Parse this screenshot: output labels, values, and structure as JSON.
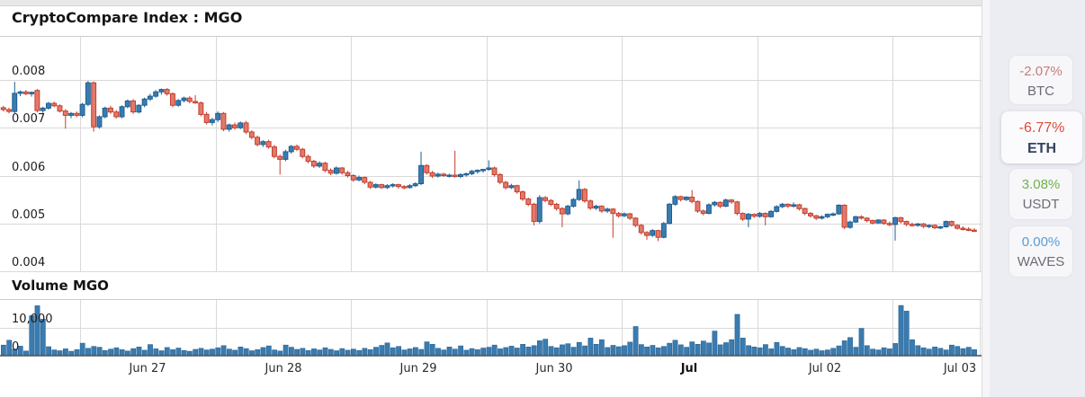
{
  "chart_data": {
    "type": "candlestick",
    "title": "CryptoCompare Index : MGO",
    "interval": "1 hour",
    "x_range_note": "Jun 26 evening through Jul 03",
    "grid": true,
    "y_ticks": [
      0.008,
      0.007,
      0.006,
      0.005,
      0.004
    ],
    "y_tick_labels": [
      "0.008",
      "0.007",
      "0.006",
      "0.005",
      "0.004"
    ],
    "ylim": [
      0.004,
      0.0089
    ],
    "x_tick_labels": [
      {
        "label": "Jun 27",
        "bold": false
      },
      {
        "label": "Jun 28",
        "bold": false
      },
      {
        "label": "Jun 29",
        "bold": false
      },
      {
        "label": "Jun 30",
        "bold": false
      },
      {
        "label": "Jul",
        "bold": true
      },
      {
        "label": "Jul 02",
        "bold": false
      },
      {
        "label": "Jul 03",
        "bold": false
      }
    ],
    "price_scale": 0.0001,
    "ohlc_note": "[open,high,low,close] multiplied by price_scale gives price",
    "ohlc": [
      [
        74.2,
        74.6,
        73.4,
        73.8
      ],
      [
        73.8,
        74.2,
        73.0,
        73.4
      ],
      [
        73.4,
        79.6,
        73.0,
        77.2
      ],
      [
        77.2,
        77.8,
        76.6,
        77.5
      ],
      [
        77.5,
        77.9,
        76.8,
        77.1
      ],
      [
        77.1,
        77.6,
        76.5,
        77.4
      ],
      [
        77.8,
        78.1,
        73.2,
        73.6
      ],
      [
        73.6,
        74.4,
        73.1,
        74.1
      ],
      [
        74.1,
        75.4,
        73.8,
        75.1
      ],
      [
        75.1,
        75.5,
        74.3,
        74.6
      ],
      [
        74.6,
        74.9,
        73.2,
        73.5
      ],
      [
        73.5,
        73.9,
        69.8,
        72.6
      ],
      [
        72.6,
        73.3,
        72.0,
        73.0
      ],
      [
        73.0,
        73.4,
        72.2,
        72.6
      ],
      [
        72.6,
        75.2,
        72.2,
        74.9
      ],
      [
        74.9,
        79.8,
        74.5,
        79.4
      ],
      [
        79.4,
        79.7,
        69.2,
        70.2
      ],
      [
        70.2,
        72.6,
        69.8,
        72.3
      ],
      [
        72.3,
        74.4,
        72.0,
        74.1
      ],
      [
        74.1,
        74.6,
        72.9,
        73.3
      ],
      [
        73.3,
        73.7,
        71.9,
        72.3
      ],
      [
        72.3,
        74.7,
        72.0,
        74.4
      ],
      [
        74.4,
        75.9,
        74.1,
        75.6
      ],
      [
        75.6,
        76.0,
        72.9,
        73.3
      ],
      [
        73.3,
        74.9,
        73.0,
        74.7
      ],
      [
        74.7,
        76.3,
        74.3,
        76.0
      ],
      [
        76.0,
        77.1,
        75.6,
        76.6
      ],
      [
        76.6,
        77.9,
        76.3,
        77.5
      ],
      [
        77.5,
        78.2,
        76.9,
        78.0
      ],
      [
        78.0,
        78.3,
        76.7,
        77.1
      ],
      [
        77.1,
        77.4,
        74.3,
        74.7
      ],
      [
        74.7,
        76.0,
        74.4,
        75.7
      ],
      [
        75.7,
        76.5,
        75.3,
        76.2
      ],
      [
        76.2,
        76.6,
        75.1,
        75.5
      ],
      [
        75.5,
        76.8,
        75.0,
        75.2
      ],
      [
        75.2,
        75.5,
        72.4,
        72.8
      ],
      [
        72.8,
        73.3,
        70.7,
        71.1
      ],
      [
        71.1,
        72.1,
        70.5,
        71.7
      ],
      [
        71.7,
        73.4,
        71.2,
        73.0
      ],
      [
        73.0,
        73.3,
        69.3,
        69.7
      ],
      [
        69.7,
        70.9,
        69.2,
        70.6
      ],
      [
        70.6,
        71.1,
        69.6,
        70.0
      ],
      [
        70.0,
        71.3,
        69.7,
        71.0
      ],
      [
        71.0,
        71.4,
        68.7,
        69.1
      ],
      [
        69.1,
        69.5,
        67.6,
        68.0
      ],
      [
        68.0,
        68.4,
        66.1,
        66.5
      ],
      [
        66.5,
        67.4,
        66.0,
        67.1
      ],
      [
        67.1,
        67.5,
        65.6,
        66.0
      ],
      [
        66.0,
        66.4,
        63.6,
        64.0
      ],
      [
        64.0,
        64.4,
        60.2,
        63.4
      ],
      [
        63.4,
        65.4,
        63.0,
        65.0
      ],
      [
        65.0,
        66.4,
        64.6,
        66.1
      ],
      [
        66.1,
        66.5,
        65.1,
        65.5
      ],
      [
        65.5,
        65.8,
        63.6,
        64.0
      ],
      [
        64.0,
        64.4,
        62.6,
        63.0
      ],
      [
        63.0,
        63.3,
        61.6,
        62.0
      ],
      [
        62.0,
        63.0,
        61.6,
        62.6
      ],
      [
        62.6,
        62.9,
        60.7,
        61.1
      ],
      [
        61.1,
        61.5,
        60.1,
        60.5
      ],
      [
        60.5,
        61.9,
        60.2,
        61.6
      ],
      [
        61.6,
        61.8,
        60.2,
        60.6
      ],
      [
        60.6,
        61.0,
        59.6,
        60.0
      ],
      [
        60.0,
        60.3,
        58.7,
        59.1
      ],
      [
        59.1,
        60.0,
        58.8,
        59.6
      ],
      [
        59.6,
        59.8,
        58.2,
        58.6
      ],
      [
        58.6,
        58.9,
        57.2,
        57.6
      ],
      [
        57.6,
        58.4,
        57.3,
        58.1
      ],
      [
        58.1,
        58.3,
        57.2,
        57.5
      ],
      [
        57.5,
        58.2,
        57.2,
        57.9
      ],
      [
        57.9,
        58.4,
        57.5,
        58.1
      ],
      [
        58.1,
        58.3,
        57.3,
        57.7
      ],
      [
        57.7,
        58.0,
        57.1,
        57.5
      ],
      [
        57.5,
        58.2,
        57.3,
        57.9
      ],
      [
        57.9,
        58.6,
        57.6,
        58.3
      ],
      [
        58.3,
        65.0,
        58.0,
        62.1
      ],
      [
        62.1,
        62.4,
        60.2,
        60.6
      ],
      [
        60.6,
        61.0,
        59.5,
        59.9
      ],
      [
        59.9,
        60.6,
        59.6,
        60.3
      ],
      [
        60.3,
        60.6,
        59.7,
        60.0
      ],
      [
        60.0,
        60.4,
        59.6,
        60.1
      ],
      [
        60.1,
        65.2,
        59.6,
        59.8
      ],
      [
        59.8,
        60.5,
        59.5,
        60.2
      ],
      [
        60.2,
        60.6,
        59.8,
        60.4
      ],
      [
        60.4,
        61.2,
        60.1,
        60.9
      ],
      [
        60.9,
        61.3,
        60.4,
        61.1
      ],
      [
        61.1,
        61.4,
        60.6,
        61.3
      ],
      [
        61.3,
        63.2,
        61.0,
        61.6
      ],
      [
        61.6,
        61.9,
        59.8,
        60.2
      ],
      [
        60.2,
        60.5,
        58.2,
        58.6
      ],
      [
        58.6,
        58.9,
        57.1,
        57.5
      ],
      [
        57.5,
        58.3,
        57.2,
        57.9
      ],
      [
        57.9,
        58.1,
        56.2,
        56.6
      ],
      [
        56.6,
        56.9,
        54.7,
        55.1
      ],
      [
        55.1,
        55.4,
        53.6,
        54.0
      ],
      [
        54.0,
        54.3,
        49.6,
        50.4
      ],
      [
        50.4,
        55.9,
        50.0,
        55.4
      ],
      [
        55.4,
        55.7,
        54.4,
        54.8
      ],
      [
        54.8,
        55.1,
        53.6,
        54.0
      ],
      [
        54.0,
        54.3,
        52.7,
        53.1
      ],
      [
        53.1,
        53.4,
        49.2,
        52.0
      ],
      [
        52.0,
        53.9,
        51.7,
        53.6
      ],
      [
        53.6,
        55.3,
        53.3,
        55.0
      ],
      [
        55.0,
        59.0,
        54.7,
        57.1
      ],
      [
        57.1,
        57.4,
        54.3,
        54.7
      ],
      [
        54.7,
        55.0,
        52.8,
        53.2
      ],
      [
        53.2,
        53.9,
        52.8,
        53.6
      ],
      [
        53.6,
        53.8,
        52.2,
        52.6
      ],
      [
        52.6,
        53.3,
        52.2,
        53.0
      ],
      [
        53.0,
        53.2,
        47.0,
        52.1
      ],
      [
        52.1,
        52.4,
        51.2,
        51.6
      ],
      [
        51.6,
        52.3,
        51.3,
        52.0
      ],
      [
        52.0,
        52.2,
        50.7,
        51.1
      ],
      [
        51.1,
        51.3,
        49.2,
        49.6
      ],
      [
        49.6,
        49.9,
        47.7,
        48.1
      ],
      [
        48.1,
        48.4,
        46.6,
        47.5
      ],
      [
        47.5,
        48.8,
        47.2,
        48.5
      ],
      [
        48.5,
        48.7,
        46.3,
        47.1
      ],
      [
        47.1,
        50.3,
        46.9,
        50.0
      ],
      [
        50.0,
        54.3,
        49.8,
        54.0
      ],
      [
        54.0,
        55.9,
        53.7,
        55.6
      ],
      [
        55.6,
        55.8,
        54.6,
        55.0
      ],
      [
        55.0,
        55.7,
        54.7,
        55.5
      ],
      [
        55.5,
        57.0,
        54.2,
        54.6
      ],
      [
        54.6,
        54.8,
        52.2,
        52.6
      ],
      [
        52.6,
        52.9,
        51.7,
        52.1
      ],
      [
        52.1,
        54.2,
        51.9,
        53.9
      ],
      [
        53.9,
        54.7,
        53.5,
        54.4
      ],
      [
        54.4,
        54.6,
        53.2,
        53.6
      ],
      [
        53.6,
        55.2,
        53.4,
        54.9
      ],
      [
        54.9,
        55.1,
        54.1,
        54.5
      ],
      [
        54.5,
        54.7,
        51.7,
        52.1
      ],
      [
        52.1,
        52.3,
        50.5,
        50.9
      ],
      [
        50.9,
        52.2,
        49.2,
        51.9
      ],
      [
        51.9,
        52.1,
        51.1,
        51.5
      ],
      [
        51.5,
        52.4,
        51.2,
        52.1
      ],
      [
        52.1,
        52.3,
        49.6,
        51.4
      ],
      [
        51.4,
        52.8,
        51.2,
        52.5
      ],
      [
        52.5,
        53.8,
        52.3,
        53.5
      ],
      [
        53.5,
        54.3,
        53.2,
        54.0
      ],
      [
        54.0,
        54.2,
        53.2,
        53.6
      ],
      [
        53.6,
        54.4,
        53.3,
        53.9
      ],
      [
        53.9,
        54.1,
        52.7,
        53.1
      ],
      [
        53.1,
        53.3,
        51.7,
        52.1
      ],
      [
        52.1,
        52.4,
        51.2,
        51.6
      ],
      [
        51.6,
        51.8,
        50.7,
        51.1
      ],
      [
        51.1,
        51.7,
        50.8,
        51.4
      ],
      [
        51.4,
        52.1,
        51.1,
        51.9
      ],
      [
        51.9,
        52.3,
        51.5,
        52.0
      ],
      [
        52.0,
        54.0,
        51.8,
        53.8
      ],
      [
        53.8,
        54.0,
        48.8,
        49.2
      ],
      [
        49.2,
        50.6,
        48.9,
        50.3
      ],
      [
        50.3,
        51.6,
        50.1,
        51.4
      ],
      [
        51.4,
        51.7,
        50.8,
        51.1
      ],
      [
        51.1,
        51.3,
        50.2,
        50.6
      ],
      [
        50.6,
        50.8,
        49.8,
        50.1
      ],
      [
        50.1,
        50.9,
        49.9,
        50.7
      ],
      [
        50.7,
        50.9,
        49.7,
        50.0
      ],
      [
        50.0,
        50.4,
        49.4,
        49.8
      ],
      [
        49.8,
        51.4,
        46.4,
        51.2
      ],
      [
        51.2,
        51.4,
        50.0,
        50.4
      ],
      [
        50.4,
        50.6,
        49.4,
        49.8
      ],
      [
        49.8,
        50.2,
        49.3,
        49.6
      ],
      [
        49.6,
        50.1,
        49.3,
        49.9
      ],
      [
        49.9,
        50.1,
        49.0,
        49.4
      ],
      [
        49.4,
        49.8,
        49.0,
        49.6
      ],
      [
        49.6,
        49.8,
        48.8,
        49.1
      ],
      [
        49.1,
        49.5,
        48.8,
        49.3
      ],
      [
        49.3,
        50.6,
        49.1,
        50.4
      ],
      [
        50.4,
        50.6,
        49.3,
        49.6
      ],
      [
        49.6,
        49.8,
        48.7,
        49.0
      ],
      [
        49.0,
        49.4,
        48.5,
        48.8
      ],
      [
        48.8,
        49.2,
        48.4,
        48.6
      ],
      [
        48.6,
        49.0,
        48.2,
        48.5
      ]
    ],
    "volume": {
      "title": "Volume MGO",
      "y_ticks": [
        10000,
        0
      ],
      "y_tick_labels": [
        "10,000",
        "0"
      ],
      "values": [
        3600,
        5400,
        2100,
        3200,
        1400,
        14500,
        18200,
        13200,
        3000,
        1800,
        1500,
        2200,
        1300,
        1900,
        4300,
        2400,
        3100,
        2800,
        1600,
        2100,
        2600,
        1900,
        1400,
        2300,
        2900,
        1700,
        3800,
        2200,
        1500,
        2700,
        1900,
        2500,
        1600,
        1300,
        2000,
        2400,
        1800,
        2100,
        2600,
        3400,
        2100,
        1700,
        2900,
        2300,
        1500,
        1900,
        2700,
        3300,
        1800,
        1400,
        3600,
        2800,
        2000,
        2400,
        1600,
        2200,
        1800,
        2600,
        2000,
        1500,
        2300,
        1700,
        2100,
        1600,
        2400,
        1900,
        2800,
        3500,
        4400,
        2600,
        3100,
        1800,
        2200,
        2700,
        2000,
        4800,
        3900,
        2400,
        1800,
        2900,
        2100,
        3300,
        1700,
        2300,
        1900,
        2500,
        2800,
        3600,
        2200,
        2700,
        3200,
        2500,
        3900,
        2900,
        3400,
        5200,
        5800,
        3100,
        2600,
        3700,
        4100,
        2800,
        4600,
        3300,
        6200,
        3900,
        5600,
        2700,
        3500,
        3000,
        3400,
        4700,
        10500,
        3800,
        2900,
        3500,
        2600,
        3100,
        4300,
        5400,
        3700,
        2800,
        4800,
        3900,
        5100,
        4400,
        8800,
        3700,
        4500,
        5600,
        15000,
        6200,
        3400,
        2900,
        2600,
        3800,
        2200,
        4600,
        3100,
        2500,
        1900,
        2700,
        2300,
        1700,
        2100,
        1500,
        1800,
        2400,
        3300,
        5200,
        6400,
        2800,
        9800,
        3400,
        2100,
        1800,
        2600,
        2200,
        4200,
        18300,
        16200,
        5600,
        3400,
        2600,
        2100,
        2900,
        2400,
        1800,
        3600,
        3100,
        2300,
        2800,
        1900
      ]
    },
    "colors": {
      "up_fill": "#3a7cb0",
      "up_border": "#1d5d92",
      "down_fill": "#e3796a",
      "down_border": "#c43d2b",
      "volume_bar": "#3a7cb0",
      "volume_bar_border": "#2a6394",
      "grid": "#d9d9d9",
      "plot_border": "#cccccc",
      "axis_line": "#4a4a4a"
    }
  },
  "sidebar": {
    "items": [
      {
        "symbol": "BTC",
        "change": "-2.07%",
        "change_color": "#c97c74",
        "selected": false
      },
      {
        "symbol": "ETH",
        "change": "-6.77%",
        "change_color": "#dc4b3e",
        "selected": true
      },
      {
        "symbol": "USDT",
        "change": "3.08%",
        "change_color": "#71b149",
        "selected": false
      },
      {
        "symbol": "WAVES",
        "change": "0.00%",
        "change_color": "#5b9cd3",
        "selected": false
      }
    ]
  }
}
